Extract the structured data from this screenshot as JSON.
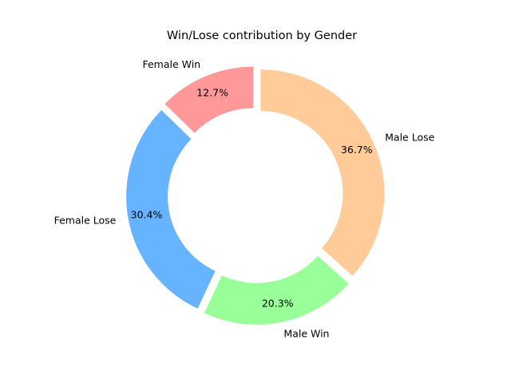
{
  "chart_data": {
    "type": "pie",
    "title": "Win/Lose contribution by Gender",
    "donut": true,
    "categories": [
      "Female Win",
      "Female Lose",
      "Male Win",
      "Male Lose"
    ],
    "values": [
      12.7,
      30.4,
      20.3,
      36.7
    ],
    "value_labels": [
      "12.7%",
      "30.4%",
      "20.3%",
      "36.7%"
    ],
    "colors": [
      "#ff9999",
      "#66b3ff",
      "#99ff99",
      "#ffcc99"
    ]
  }
}
